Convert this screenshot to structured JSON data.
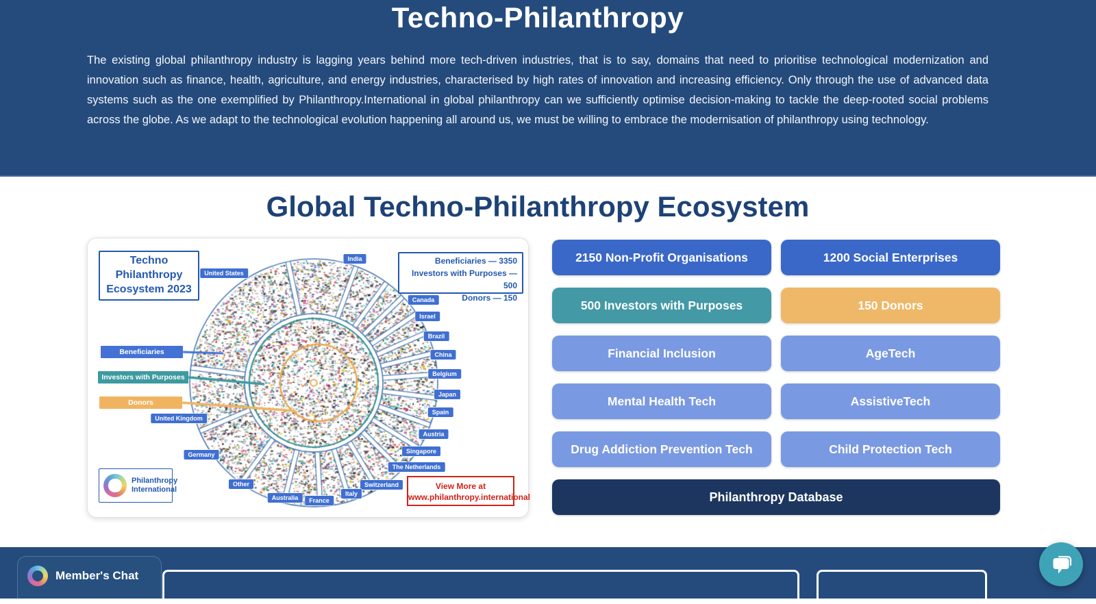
{
  "header": {
    "title": "Techno-Philanthropy",
    "paragraph": "The existing global philanthropy industry is lagging years behind more tech-driven industries, that is to say, domains that need to prioritise technological modernization and innovation such as finance, health, agriculture, and energy industries, characterised by high rates of innovation and increasing efficiency. Only through the use of advanced data systems such as the one exemplified by Philanthropy.International in global philanthropy can we sufficiently optimise decision-making to tackle the deep-rooted social problems across the globe. As we adapt to the technological evolution happening all around us, we must be willing to embrace the modernisation of philanthropy using technology."
  },
  "ecosystem": {
    "section_title": "Global Techno-Philanthropy Ecosystem",
    "diagram": {
      "title_lines": [
        "Techno",
        "Philanthropy",
        "Ecosystem 2023"
      ],
      "stats_lines": [
        "Beneficiaries — 3350",
        "Investors with Purposes — 500",
        "Donors — 150"
      ],
      "legend": [
        {
          "label": "Beneficiaries",
          "color": "#4472d4"
        },
        {
          "label": "Investors with Purposes",
          "color": "#3d9aa0"
        },
        {
          "label": "Donors",
          "color": "#f0b460"
        }
      ],
      "countries": [
        "India",
        "United States",
        "Canada",
        "Israel",
        "Brazil",
        "China",
        "Belgium",
        "Japan",
        "Spain",
        "Austria",
        "Singapore",
        "The Netherlands",
        "Switzerland",
        "Italy",
        "France",
        "Australia",
        "Other",
        "Germany",
        "United Kingdom"
      ],
      "logo": {
        "icon": "philanthropy-ring-logo",
        "lines": [
          "Philanthropy",
          "International"
        ]
      },
      "view_more_lines": [
        "View More at",
        "www.philanthropy.international"
      ]
    },
    "buttons": [
      {
        "label": "2150 Non-Profit Organisations",
        "style": "primary"
      },
      {
        "label": "1200 Social Enterprises",
        "style": "primary"
      },
      {
        "label": "500 Investors with Purposes",
        "style": "teal"
      },
      {
        "label": "150 Donors",
        "style": "orange"
      },
      {
        "label": "Financial Inclusion",
        "style": "light"
      },
      {
        "label": "AgeTech",
        "style": "light"
      },
      {
        "label": "Mental Health Tech",
        "style": "light"
      },
      {
        "label": "AssistiveTech",
        "style": "light"
      },
      {
        "label": "Drug Addiction Prevention Tech",
        "style": "light"
      },
      {
        "label": "Child Protection Tech",
        "style": "light"
      }
    ],
    "database_button": {
      "label": "Philanthropy Database",
      "style": "navy"
    }
  },
  "footer": {
    "chat_tab": {
      "icon": "philanthropy-ring-logo",
      "label": "Member's Chat"
    }
  },
  "chat_widget": {
    "icon": "chat-bubble-icon"
  },
  "colors": {
    "header_bg": "#254b7c",
    "primary_blue": "#3a68c9",
    "teal": "#4399a6",
    "orange": "#efb768",
    "light_blue": "#7a99e3",
    "navy": "#1c3660",
    "heading_blue": "#1d4276",
    "diagram_border_blue": "#2458b0",
    "country_chip_blue": "#3f6fd1",
    "red": "#cf2217",
    "chat_teal": "#3fa3b8"
  }
}
